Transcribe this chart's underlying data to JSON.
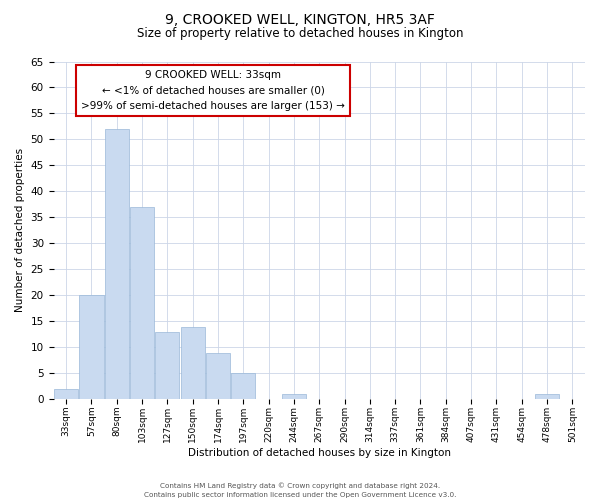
{
  "title": "9, CROOKED WELL, KINGTON, HR5 3AF",
  "subtitle": "Size of property relative to detached houses in Kington",
  "xlabel": "Distribution of detached houses by size in Kington",
  "ylabel": "Number of detached properties",
  "bin_labels": [
    "33sqm",
    "57sqm",
    "80sqm",
    "103sqm",
    "127sqm",
    "150sqm",
    "174sqm",
    "197sqm",
    "220sqm",
    "244sqm",
    "267sqm",
    "290sqm",
    "314sqm",
    "337sqm",
    "361sqm",
    "384sqm",
    "407sqm",
    "431sqm",
    "454sqm",
    "478sqm",
    "501sqm"
  ],
  "bar_values": [
    2,
    20,
    52,
    37,
    13,
    14,
    9,
    5,
    0,
    1,
    0,
    0,
    0,
    0,
    0,
    0,
    0,
    0,
    0,
    1,
    0
  ],
  "bar_color": "#c9daf0",
  "bar_edge_color": "#9ab8d8",
  "ylim": [
    0,
    65
  ],
  "yticks": [
    0,
    5,
    10,
    15,
    20,
    25,
    30,
    35,
    40,
    45,
    50,
    55,
    60,
    65
  ],
  "annotation_title": "9 CROOKED WELL: 33sqm",
  "annotation_line1": "← <1% of detached houses are smaller (0)",
  "annotation_line2": ">99% of semi-detached houses are larger (153) →",
  "annotation_box_color": "#ffffff",
  "annotation_box_edge": "#cc0000",
  "footer1": "Contains HM Land Registry data © Crown copyright and database right 2024.",
  "footer2": "Contains public sector information licensed under the Open Government Licence v3.0.",
  "background_color": "#ffffff",
  "grid_color": "#ccd6e8"
}
